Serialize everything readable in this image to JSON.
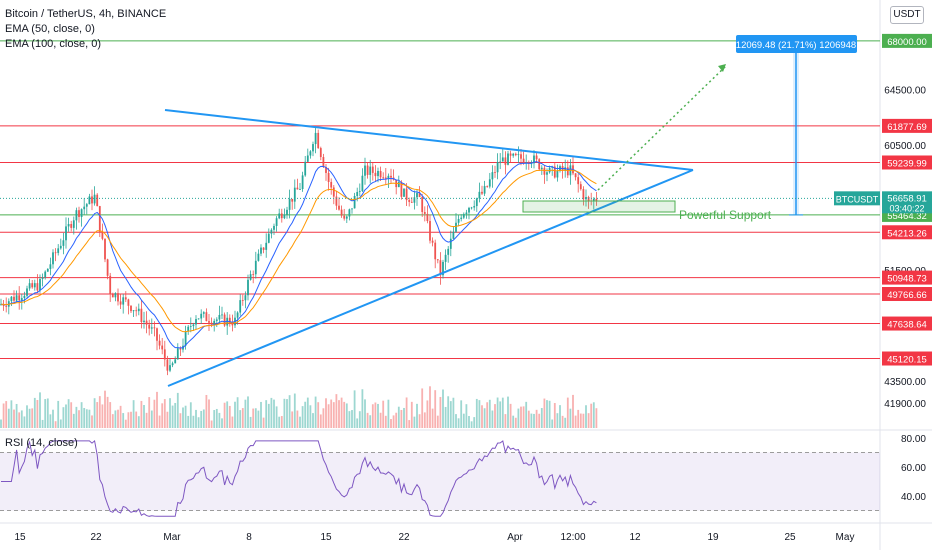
{
  "legend": {
    "symbol": "Bitcoin / TetherUS, 4h, BINANCE",
    "ema50": "EMA (50, close, 0)",
    "ema100": "EMA (100, close, 0)"
  },
  "currency_button": "USDT",
  "rsi_label": "RSI (14, close)",
  "chart_data": {
    "type": "candlestick",
    "symbol": "BTCUSDT",
    "interval": "4h",
    "exchange": "BINANCE",
    "x_ticks": [
      "15",
      "22",
      "Mar",
      "8",
      "15",
      "22",
      "Apr",
      "12:00",
      "12",
      "19",
      "25",
      "May"
    ],
    "y_ticks": [
      "64500.00",
      "60500.00",
      "51500.00",
      "43500.00",
      "41900.00"
    ],
    "y_range": [
      41200,
      71000
    ],
    "price_levels": [
      {
        "label": "68000.00",
        "value": 68000,
        "color": "#4caf50"
      },
      {
        "label": "61877.69",
        "value": 61877.69,
        "color": "#f23645"
      },
      {
        "label": "59239.99",
        "value": 59239.99,
        "color": "#f23645"
      },
      {
        "label": "55464.32",
        "value": 55464.32,
        "color": "#4caf50"
      },
      {
        "label": "54213.26",
        "value": 54213.26,
        "color": "#f23645"
      },
      {
        "label": "50948.73",
        "value": 50948.73,
        "color": "#f23645"
      },
      {
        "label": "49766.66",
        "value": 49766.66,
        "color": "#f23645"
      },
      {
        "label": "47638.64",
        "value": 47638.64,
        "color": "#f23645"
      },
      {
        "label": "45120.15",
        "value": 45120.15,
        "color": "#f23645"
      }
    ],
    "current_price": {
      "symbol": "BTCUSDT",
      "price": "56658.91",
      "countdown": "03:40:22",
      "value": 56658.91
    },
    "measure_label": "12069.48 (21.71%) 1206948",
    "annotation": "Powerful Support",
    "rsi": {
      "y_ticks": [
        "80.00",
        "60.00",
        "40.00"
      ],
      "upper": 70,
      "lower": 30
    }
  }
}
